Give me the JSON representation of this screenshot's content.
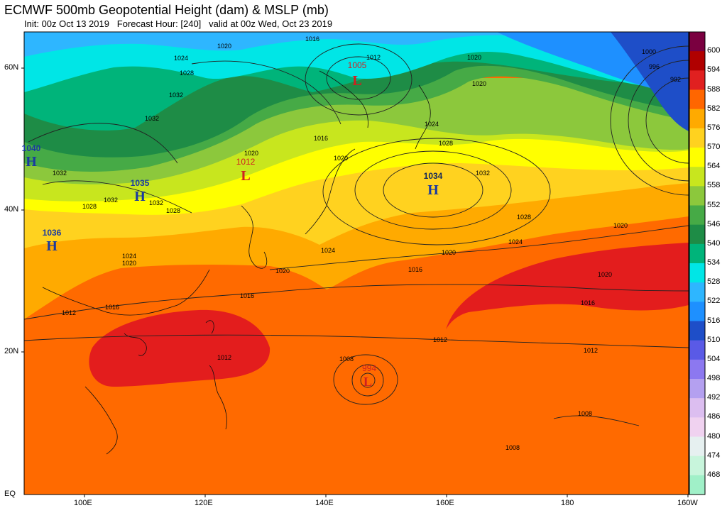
{
  "header": {
    "title": "ECMWF 500mb Geopotential Height (dam) & MSLP (mb)",
    "subtitle": "Init: 00z Oct 13 2019   Forecast Hour: [240]   valid at 00z Wed, Oct 23 2019"
  },
  "axes": {
    "lat_labels": [
      "60N",
      "40N",
      "20N",
      "EQ"
    ],
    "lon_labels": [
      "100E",
      "120E",
      "140E",
      "160E",
      "180",
      "160W"
    ]
  },
  "colorbar": {
    "levels": [
      "600",
      "594",
      "588",
      "582",
      "576",
      "570",
      "564",
      "558",
      "552",
      "546",
      "540",
      "534",
      "528",
      "522",
      "516",
      "510",
      "504",
      "498",
      "492",
      "486",
      "480",
      "474",
      "468"
    ],
    "colors": [
      "#7a0040",
      "#b00000",
      "#e02020",
      "#ff6600",
      "#ffaa00",
      "#ffd21f",
      "#ffff00",
      "#c8e61e",
      "#8cc83c",
      "#46aa46",
      "#1e8c46",
      "#00b47a",
      "#00e6e6",
      "#2eb6ff",
      "#1e90ff",
      "#1e4ec8",
      "#5a5ae6",
      "#8c78f0",
      "#b4a0f0",
      "#dcbef0",
      "#f0d2f0",
      "#e6f0f0",
      "#c8f5dc",
      "#a0f0c8"
    ]
  },
  "pressure_centers": [
    {
      "type": "L",
      "value": "1005"
    },
    {
      "type": "L",
      "value": "1012"
    },
    {
      "type": "H",
      "value": "1034"
    },
    {
      "type": "H",
      "value": "1040"
    },
    {
      "type": "H",
      "value": "1035"
    },
    {
      "type": "H",
      "value": "1036"
    },
    {
      "type": "L",
      "value": "994"
    }
  ],
  "isobar_labels": [
    "1016",
    "1020",
    "1024",
    "1028",
    "1032",
    "1012",
    "1008",
    "1000",
    "996",
    "992"
  ]
}
